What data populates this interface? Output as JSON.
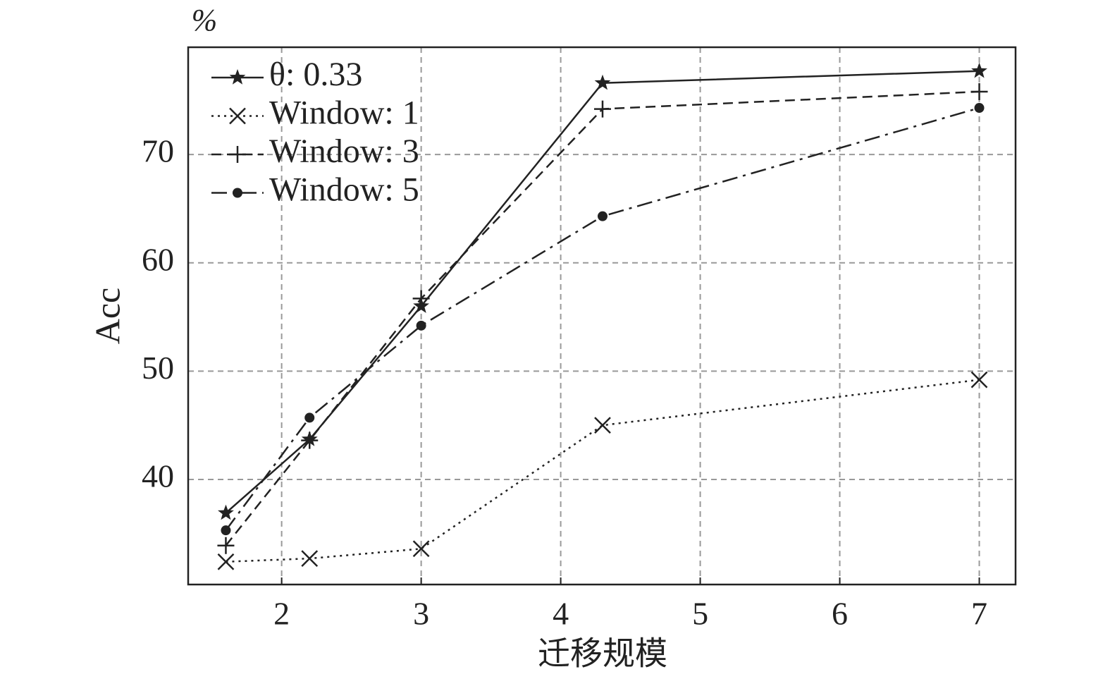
{
  "chart_data": {
    "type": "line",
    "y_unit": "%",
    "y_label": "Acc",
    "x_label": "迁移规模",
    "x": [
      1.6,
      2.2,
      3,
      4.3,
      7
    ],
    "series": [
      {
        "name": "θ: 0.33",
        "color": "#222222",
        "linestyle": "solid",
        "marker": "star",
        "values": [
          36.9,
          43.7,
          56.0,
          76.6,
          77.7
        ]
      },
      {
        "name": "Window: 1",
        "color": "#222222",
        "linestyle": "dotted",
        "marker": "x",
        "values": [
          32.4,
          32.7,
          33.6,
          45.0,
          49.2
        ]
      },
      {
        "name": "Window: 3",
        "color": "#222222",
        "linestyle": "dashed",
        "marker": "plus",
        "values": [
          33.9,
          43.6,
          56.7,
          74.2,
          75.8
        ]
      },
      {
        "name": "Window: 5",
        "color": "#222222",
        "linestyle": "dashdot",
        "marker": "circle",
        "values": [
          35.3,
          45.7,
          54.2,
          64.3,
          74.3
        ]
      }
    ],
    "xlim": [
      1.33,
      7.26
    ],
    "ylim": [
      30.3,
      79.9
    ],
    "xticks": [
      2,
      3,
      4,
      5,
      6,
      7
    ],
    "yticks": [
      40,
      50,
      60,
      70
    ],
    "grid": true,
    "legend": "upper left"
  }
}
